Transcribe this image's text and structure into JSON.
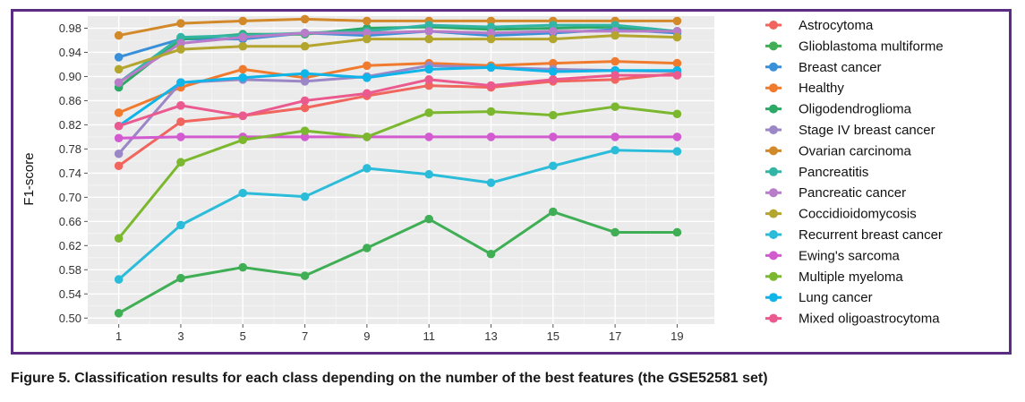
{
  "caption": "Figure 5. Classification results for each class depending on the number of the best features (the GSE52581 set)",
  "chart_data": {
    "type": "line",
    "ylabel": "F1-score",
    "xlabel": "",
    "x": [
      1,
      3,
      5,
      7,
      9,
      11,
      13,
      15,
      17,
      19
    ],
    "ylim": [
      0.49,
      1.0
    ],
    "yticks": [
      0.5,
      0.54,
      0.58,
      0.62,
      0.66,
      0.7,
      0.74,
      0.78,
      0.82,
      0.86,
      0.9,
      0.94,
      0.98
    ],
    "ytick_labels": [
      "0.50",
      "0.54",
      "0.58",
      "0.62",
      "0.66",
      "0.70",
      "0.74",
      "0.78",
      "0.82",
      "0.86",
      "0.90",
      "0.94",
      "0.98"
    ],
    "grid": true,
    "legend_position": "right",
    "series": [
      {
        "name": "Astrocytoma",
        "color": "#f0655d",
        "values": [
          0.752,
          0.825,
          0.835,
          0.848,
          0.868,
          0.885,
          0.882,
          0.892,
          0.895,
          0.905
        ]
      },
      {
        "name": "Glioblastoma multiforme",
        "color": "#3fae55",
        "values": [
          0.508,
          0.566,
          0.584,
          0.57,
          0.616,
          0.664,
          0.606,
          0.676,
          0.642,
          0.642
        ]
      },
      {
        "name": "Breast cancer",
        "color": "#3a90d8",
        "values": [
          0.932,
          0.962,
          0.962,
          0.972,
          0.968,
          0.975,
          0.968,
          0.972,
          0.978,
          0.972
        ]
      },
      {
        "name": "Healthy",
        "color": "#f07a2e",
        "values": [
          0.84,
          0.882,
          0.912,
          0.898,
          0.918,
          0.922,
          0.918,
          0.922,
          0.925,
          0.922
        ]
      },
      {
        "name": "Oligodendroglioma",
        "color": "#2ea867",
        "values": [
          0.882,
          0.962,
          0.97,
          0.97,
          0.98,
          0.982,
          0.978,
          0.98,
          0.982,
          0.975
        ]
      },
      {
        "name": "Stage IV breast cancer",
        "color": "#9b86c6",
        "values": [
          0.772,
          0.89,
          0.895,
          0.892,
          0.9,
          0.918,
          0.915,
          0.912,
          0.91,
          0.908
        ]
      },
      {
        "name": "Ovarian carcinoma",
        "color": "#d2892a",
        "values": [
          0.968,
          0.988,
          0.992,
          0.995,
          0.992,
          0.992,
          0.992,
          0.992,
          0.992,
          0.992
        ]
      },
      {
        "name": "Pancreatitis",
        "color": "#32b5a5",
        "values": [
          0.89,
          0.965,
          0.968,
          0.972,
          0.975,
          0.985,
          0.982,
          0.985,
          0.985,
          0.975
        ]
      },
      {
        "name": "Pancreatic cancer",
        "color": "#b97cc8",
        "values": [
          0.89,
          0.955,
          0.965,
          0.972,
          0.972,
          0.975,
          0.972,
          0.975,
          0.975,
          0.975
        ]
      },
      {
        "name": "Coccidioidomycosis",
        "color": "#b3a52e",
        "values": [
          0.912,
          0.945,
          0.95,
          0.95,
          0.962,
          0.962,
          0.962,
          0.962,
          0.968,
          0.965
        ]
      },
      {
        "name": "Recurrent breast cancer",
        "color": "#2bbcd9",
        "values": [
          0.564,
          0.654,
          0.707,
          0.701,
          0.748,
          0.738,
          0.724,
          0.752,
          0.778,
          0.776
        ]
      },
      {
        "name": "Ewing's sarcoma",
        "color": "#d25bd0",
        "values": [
          0.798,
          0.8,
          0.8,
          0.8,
          0.8,
          0.8,
          0.8,
          0.8,
          0.8,
          0.8
        ]
      },
      {
        "name": "Multiple myeloma",
        "color": "#7cb82f",
        "values": [
          0.632,
          0.758,
          0.795,
          0.81,
          0.8,
          0.84,
          0.842,
          0.836,
          0.85,
          0.838
        ]
      },
      {
        "name": "Lung cancer",
        "color": "#0fb4e8",
        "values": [
          0.818,
          0.89,
          0.898,
          0.905,
          0.898,
          0.912,
          0.915,
          0.908,
          0.91,
          0.91
        ]
      },
      {
        "name": "Mixed oligoastrocytoma",
        "color": "#ea5a8e",
        "values": [
          0.818,
          0.852,
          0.835,
          0.86,
          0.872,
          0.895,
          0.885,
          0.895,
          0.902,
          0.902
        ]
      }
    ]
  }
}
